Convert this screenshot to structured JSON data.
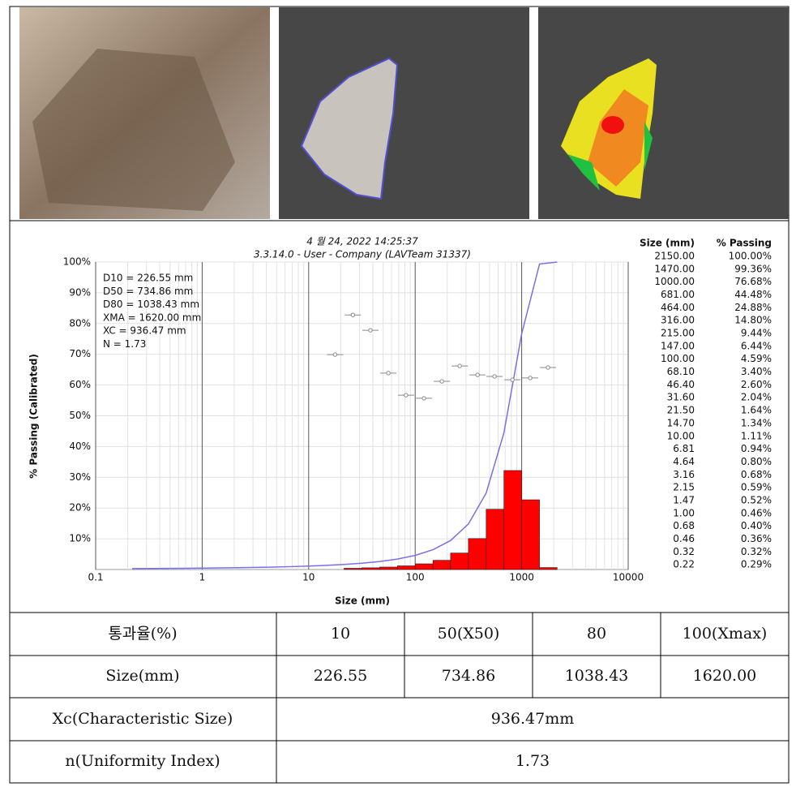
{
  "chart_data": {
    "type": "histogram",
    "title_lines": [
      "4 월 24, 2022 14:25:37",
      "3.3.14.0  -  User - Company (LAVTeam 31337)"
    ],
    "xlabel": "Size (mm)",
    "ylabel": "% Passing (Calibrated)",
    "log_x": true,
    "grid": true,
    "xlim": [
      0.1,
      10000
    ],
    "xticks": [
      0.1,
      1,
      10,
      100,
      1000,
      10000
    ],
    "ylim": [
      0,
      100
    ],
    "yticks": [
      {
        "value": 10,
        "label": "10%"
      },
      {
        "value": 20,
        "label": "20%"
      },
      {
        "value": 30,
        "label": "30%"
      },
      {
        "value": 40,
        "label": "40%"
      },
      {
        "value": 50,
        "label": "50%"
      },
      {
        "value": 60,
        "label": "60%"
      },
      {
        "value": 70,
        "label": "70%"
      },
      {
        "value": 80,
        "label": "80%"
      },
      {
        "value": 90,
        "label": "90%"
      },
      {
        "value": 100,
        "label": "100%"
      }
    ],
    "bins": [
      21.5,
      31.6,
      46.4,
      68.1,
      100,
      147,
      215,
      316,
      464,
      681,
      1000,
      1470,
      2150
    ],
    "values": [
      0.4,
      0.56,
      0.8,
      1.19,
      1.85,
      3.0,
      5.36,
      10.08,
      19.6,
      32.2,
      22.68,
      0.64
    ],
    "color": "#ff0000",
    "stats": [
      "D10 = 226.55 mm",
      "D50 = 734.86 mm",
      "D80 = 1038.43 mm",
      "XMA = 1620.00 mm",
      "XC = 936.47 mm",
      "N = 1.73"
    ],
    "table_headers": [
      "Size (mm)",
      "% Passing"
    ],
    "series": [
      {
        "type": "line",
        "color": "#7b6fe8",
        "x": [
          2150,
          1470,
          1000,
          681,
          464,
          316,
          215,
          147,
          100,
          68.1,
          46.4,
          31.6,
          21.5,
          14.7,
          10,
          6.81,
          4.64,
          3.16,
          2.15,
          1.47,
          1,
          0.68,
          0.46,
          0.32,
          0.22
        ],
        "values": [
          100,
          99.36,
          76.68,
          44.48,
          24.88,
          14.8,
          9.44,
          6.44,
          4.59,
          3.4,
          2.6,
          2.04,
          1.64,
          1.34,
          1.11,
          0.94,
          0.8,
          0.68,
          0.59,
          0.52,
          0.46,
          0.4,
          0.36,
          0.32,
          0.29
        ],
        "x_labels": [
          "2150.00",
          "1470.00",
          "1000.00",
          "681.00",
          "464.00",
          "316.00",
          "215.00",
          "147.00",
          "100.00",
          "68.10",
          "46.40",
          "31.60",
          "21.50",
          "14.70",
          "10.00",
          "6.81",
          "4.64",
          "3.16",
          "2.15",
          "1.47",
          "1.00",
          "0.68",
          "0.46",
          "0.32",
          "0.22"
        ],
        "value_labels": [
          "100.00%",
          "99.36%",
          "76.68%",
          "44.48%",
          "24.88%",
          "14.80%",
          "9.44%",
          "6.44%",
          "4.59%",
          "3.40%",
          "2.60%",
          "2.04%",
          "1.64%",
          "1.34%",
          "1.11%",
          "0.94%",
          "0.80%",
          "0.68%",
          "0.59%",
          "0.52%",
          "0.46%",
          "0.40%",
          "0.36%",
          "0.32%",
          "0.29%"
        ]
      },
      {
        "type": "scatter",
        "color": "#888888",
        "x": [
          17.7,
          26,
          38,
          56,
          82,
          121,
          178,
          262,
          385,
          556,
          818,
          1202,
          1766
        ],
        "values": [
          69.9,
          82.8,
          77.8,
          63.9,
          56.7,
          55.7,
          61.2,
          66.2,
          63.3,
          62.8,
          61.7,
          62.3,
          65.7
        ]
      }
    ]
  },
  "table": {
    "rows": [
      [
        "통과율(%)",
        "10",
        "50(X50)",
        "80",
        "100(Xmax)"
      ],
      [
        "Size(mm)",
        "226.55",
        "734.86",
        "1038.43",
        "1620.00"
      ],
      [
        "Xc(Characteristic Size)",
        "936.47mm"
      ],
      [
        "n(Uniformity Index)",
        "1.73"
      ]
    ]
  }
}
